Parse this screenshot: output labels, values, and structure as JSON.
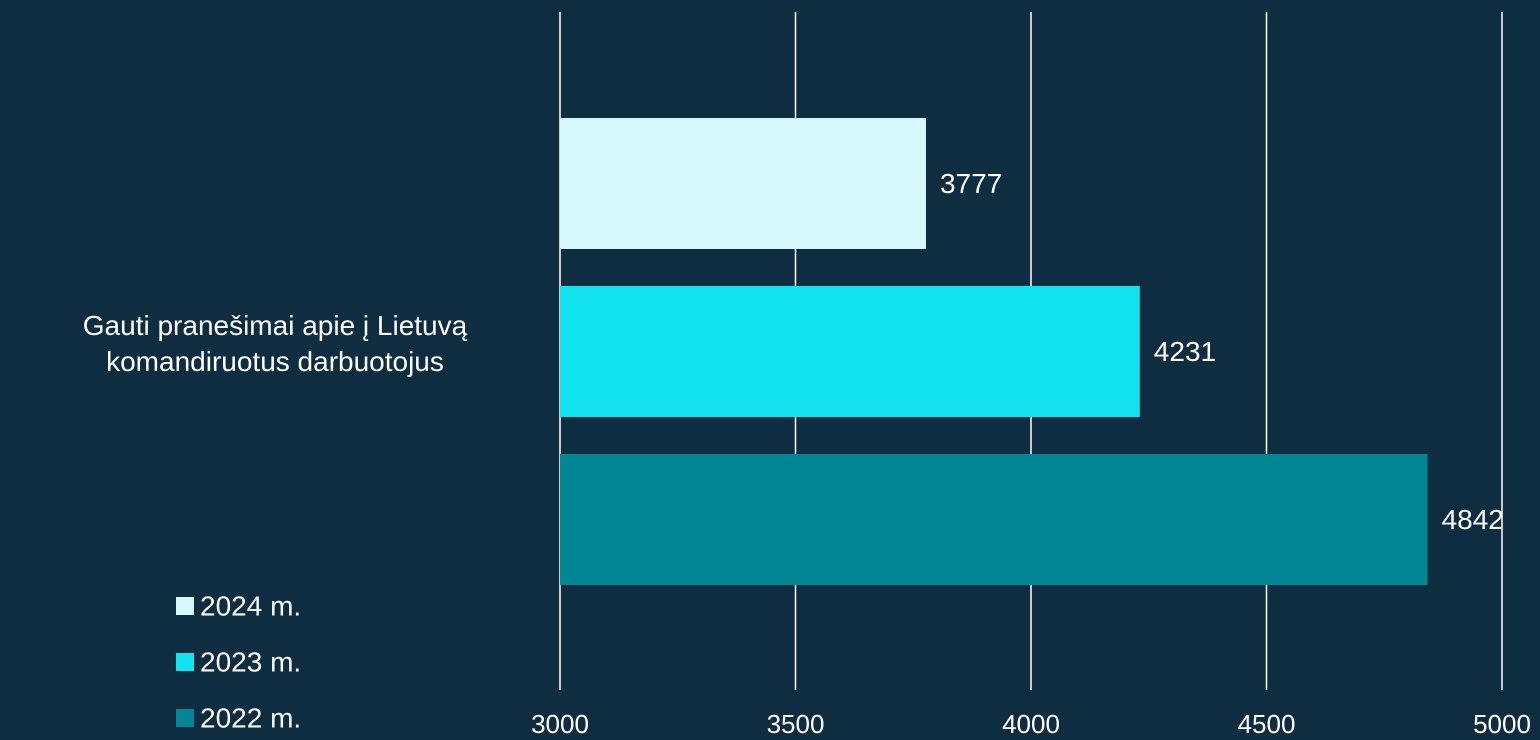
{
  "chart_data": {
    "type": "hbar",
    "categories": [
      "Gauti pranešimai apie į Lietuvą komandiruotus darbuotojus"
    ],
    "series": [
      {
        "name": "2024 m.",
        "color": "#d6f8fa",
        "values": [
          3777
        ]
      },
      {
        "name": "2023 m.",
        "color": "#12e3ee",
        "values": [
          4231
        ]
      },
      {
        "name": "2022 m.",
        "color": "#028694",
        "values": [
          4842
        ]
      }
    ],
    "xlim": [
      3000,
      5000
    ],
    "xticks": [
      3000,
      3500,
      4000,
      4500,
      5000
    ],
    "grid": true
  }
}
